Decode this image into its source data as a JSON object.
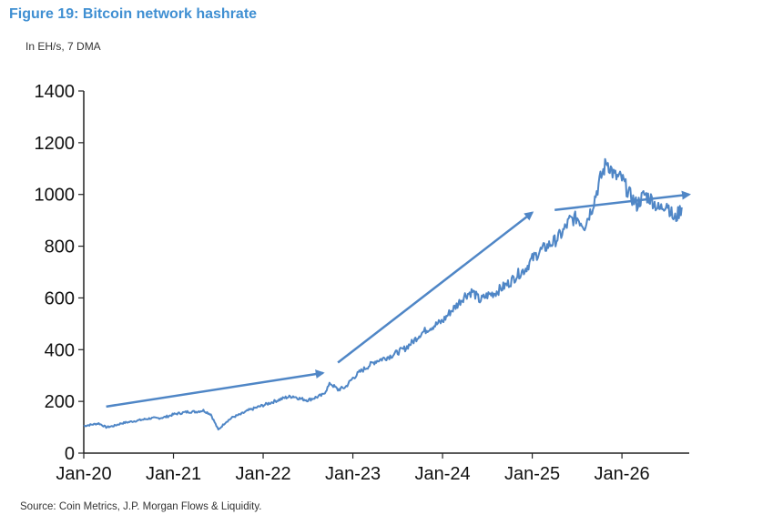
{
  "header": {
    "title": "Figure 19: Bitcoin network hashrate",
    "subtitle": "In EH/s, 7 DMA"
  },
  "footer": {
    "source": "Source: Coin Metrics, J.P. Morgan Flows & Liquidity."
  },
  "colors": {
    "title": "#3f8fd2",
    "series": "#4f86c6",
    "arrow": "#4f86c6",
    "axis": "#222222"
  },
  "chart_data": {
    "type": "line",
    "title": "Figure 19: Bitcoin network hashrate",
    "subtitle": "In EH/s, 7 DMA",
    "xlabel": "",
    "ylabel": "",
    "ylim": [
      0,
      1400
    ],
    "xlim": [
      "2020-01",
      "2026-10"
    ],
    "yticks": [
      0,
      200,
      400,
      600,
      800,
      1000,
      1200,
      1400
    ],
    "xticks": [
      "Jan-20",
      "Jan-21",
      "Jan-22",
      "Jan-23",
      "Jan-24",
      "Jan-25",
      "Jan-26"
    ],
    "grid": false,
    "legend": "none",
    "series": [
      {
        "x": [
          "2020-01",
          "2020-02",
          "2020-03",
          "2020-04",
          "2020-05",
          "2020-06",
          "2020-07",
          "2020-08",
          "2020-09",
          "2020-10",
          "2020-11",
          "2020-12",
          "2021-01",
          "2021-02",
          "2021-03",
          "2021-04",
          "2021-05",
          "2021-06",
          "2021-07",
          "2021-08",
          "2021-09",
          "2021-10",
          "2021-11",
          "2021-12",
          "2022-01",
          "2022-02",
          "2022-03",
          "2022-04",
          "2022-05",
          "2022-06",
          "2022-07",
          "2022-08",
          "2022-09",
          "2022-10",
          "2022-11",
          "2022-12",
          "2023-01",
          "2023-02",
          "2023-03",
          "2023-04",
          "2023-05",
          "2023-06",
          "2023-07",
          "2023-08",
          "2023-09",
          "2023-10",
          "2023-11",
          "2023-12",
          "2024-01",
          "2024-02",
          "2024-03",
          "2024-04",
          "2024-05",
          "2024-06",
          "2024-07",
          "2024-08",
          "2024-09",
          "2024-10",
          "2024-11",
          "2024-12",
          "2025-01",
          "2025-02",
          "2025-03",
          "2025-04",
          "2025-05",
          "2025-06",
          "2025-07",
          "2025-08",
          "2025-09",
          "2025-10",
          "2025-11",
          "2025-12",
          "2026-01",
          "2026-02",
          "2026-03",
          "2026-04",
          "2026-05",
          "2026-06",
          "2026-07",
          "2026-08",
          "2026-09"
        ],
        "values": [
          105,
          110,
          115,
          100,
          105,
          115,
          120,
          125,
          130,
          135,
          135,
          140,
          150,
          155,
          160,
          160,
          165,
          150,
          90,
          120,
          140,
          150,
          165,
          175,
          185,
          195,
          205,
          215,
          220,
          210,
          205,
          215,
          225,
          270,
          245,
          255,
          290,
          315,
          335,
          355,
          365,
          375,
          390,
          405,
          430,
          460,
          480,
          495,
          510,
          545,
          575,
          610,
          625,
          590,
          610,
          620,
          640,
          660,
          690,
          710,
          750,
          780,
          800,
          820,
          850,
          900,
          910,
          880,
          950,
          1050,
          1130,
          1070,
          1060,
          1000,
          960,
          1000,
          980,
          940,
          970,
          900,
          950
        ]
      }
    ],
    "annotations": [
      {
        "type": "arrow",
        "from": [
          "2020-04",
          180
        ],
        "to": [
          "2022-09",
          310
        ]
      },
      {
        "type": "arrow",
        "from": [
          "2022-11",
          350
        ],
        "to": [
          "2025-01",
          930
        ]
      },
      {
        "type": "arrow",
        "from": [
          "2025-04",
          940
        ],
        "to": [
          "2026-10",
          1000
        ]
      }
    ]
  }
}
